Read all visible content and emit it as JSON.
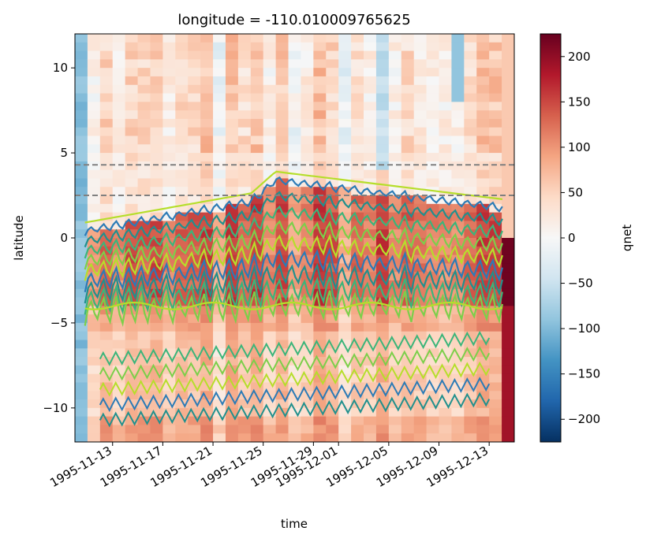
{
  "chart_data": {
    "type": "heatmap",
    "title": "longitude = -110.010009765625",
    "xlabel": "time",
    "ylabel": "latitude",
    "colorbar_label": "qnet",
    "x_start": "1995-11-10",
    "x_end": "1995-12-15",
    "x_tick_labels": [
      "1995-11-13",
      "1995-11-17",
      "1995-11-21",
      "1995-11-25",
      "1995-11-29",
      "1995-12-01",
      "1995-12-05",
      "1995-12-09",
      "1995-12-13"
    ],
    "y_ticks": [
      10,
      5,
      0,
      -5,
      -10
    ],
    "y_tick_labels": [
      "10",
      "5",
      "0",
      "−5",
      "−10"
    ],
    "ylim": [
      -12,
      12
    ],
    "colorbar_ticks": [
      200,
      150,
      100,
      50,
      0,
      -50,
      -100,
      -150,
      -200
    ],
    "colorbar_tick_labels": [
      "200",
      "150",
      "100",
      "50",
      "0",
      "−50",
      "−100",
      "−150",
      "−200"
    ],
    "colorbar_range": [
      -225,
      225
    ],
    "colormap": "RdBu_r",
    "reference_lines": [
      {
        "y": 4.3,
        "style": "dashed",
        "color": "#808080"
      },
      {
        "y": 2.5,
        "style": "dashed",
        "color": "#808080"
      }
    ],
    "contour_colors": [
      "#2c7bb6",
      "#21908d",
      "#3bb57a",
      "#7ccf4a",
      "#b6de2b"
    ],
    "grid": false
  }
}
